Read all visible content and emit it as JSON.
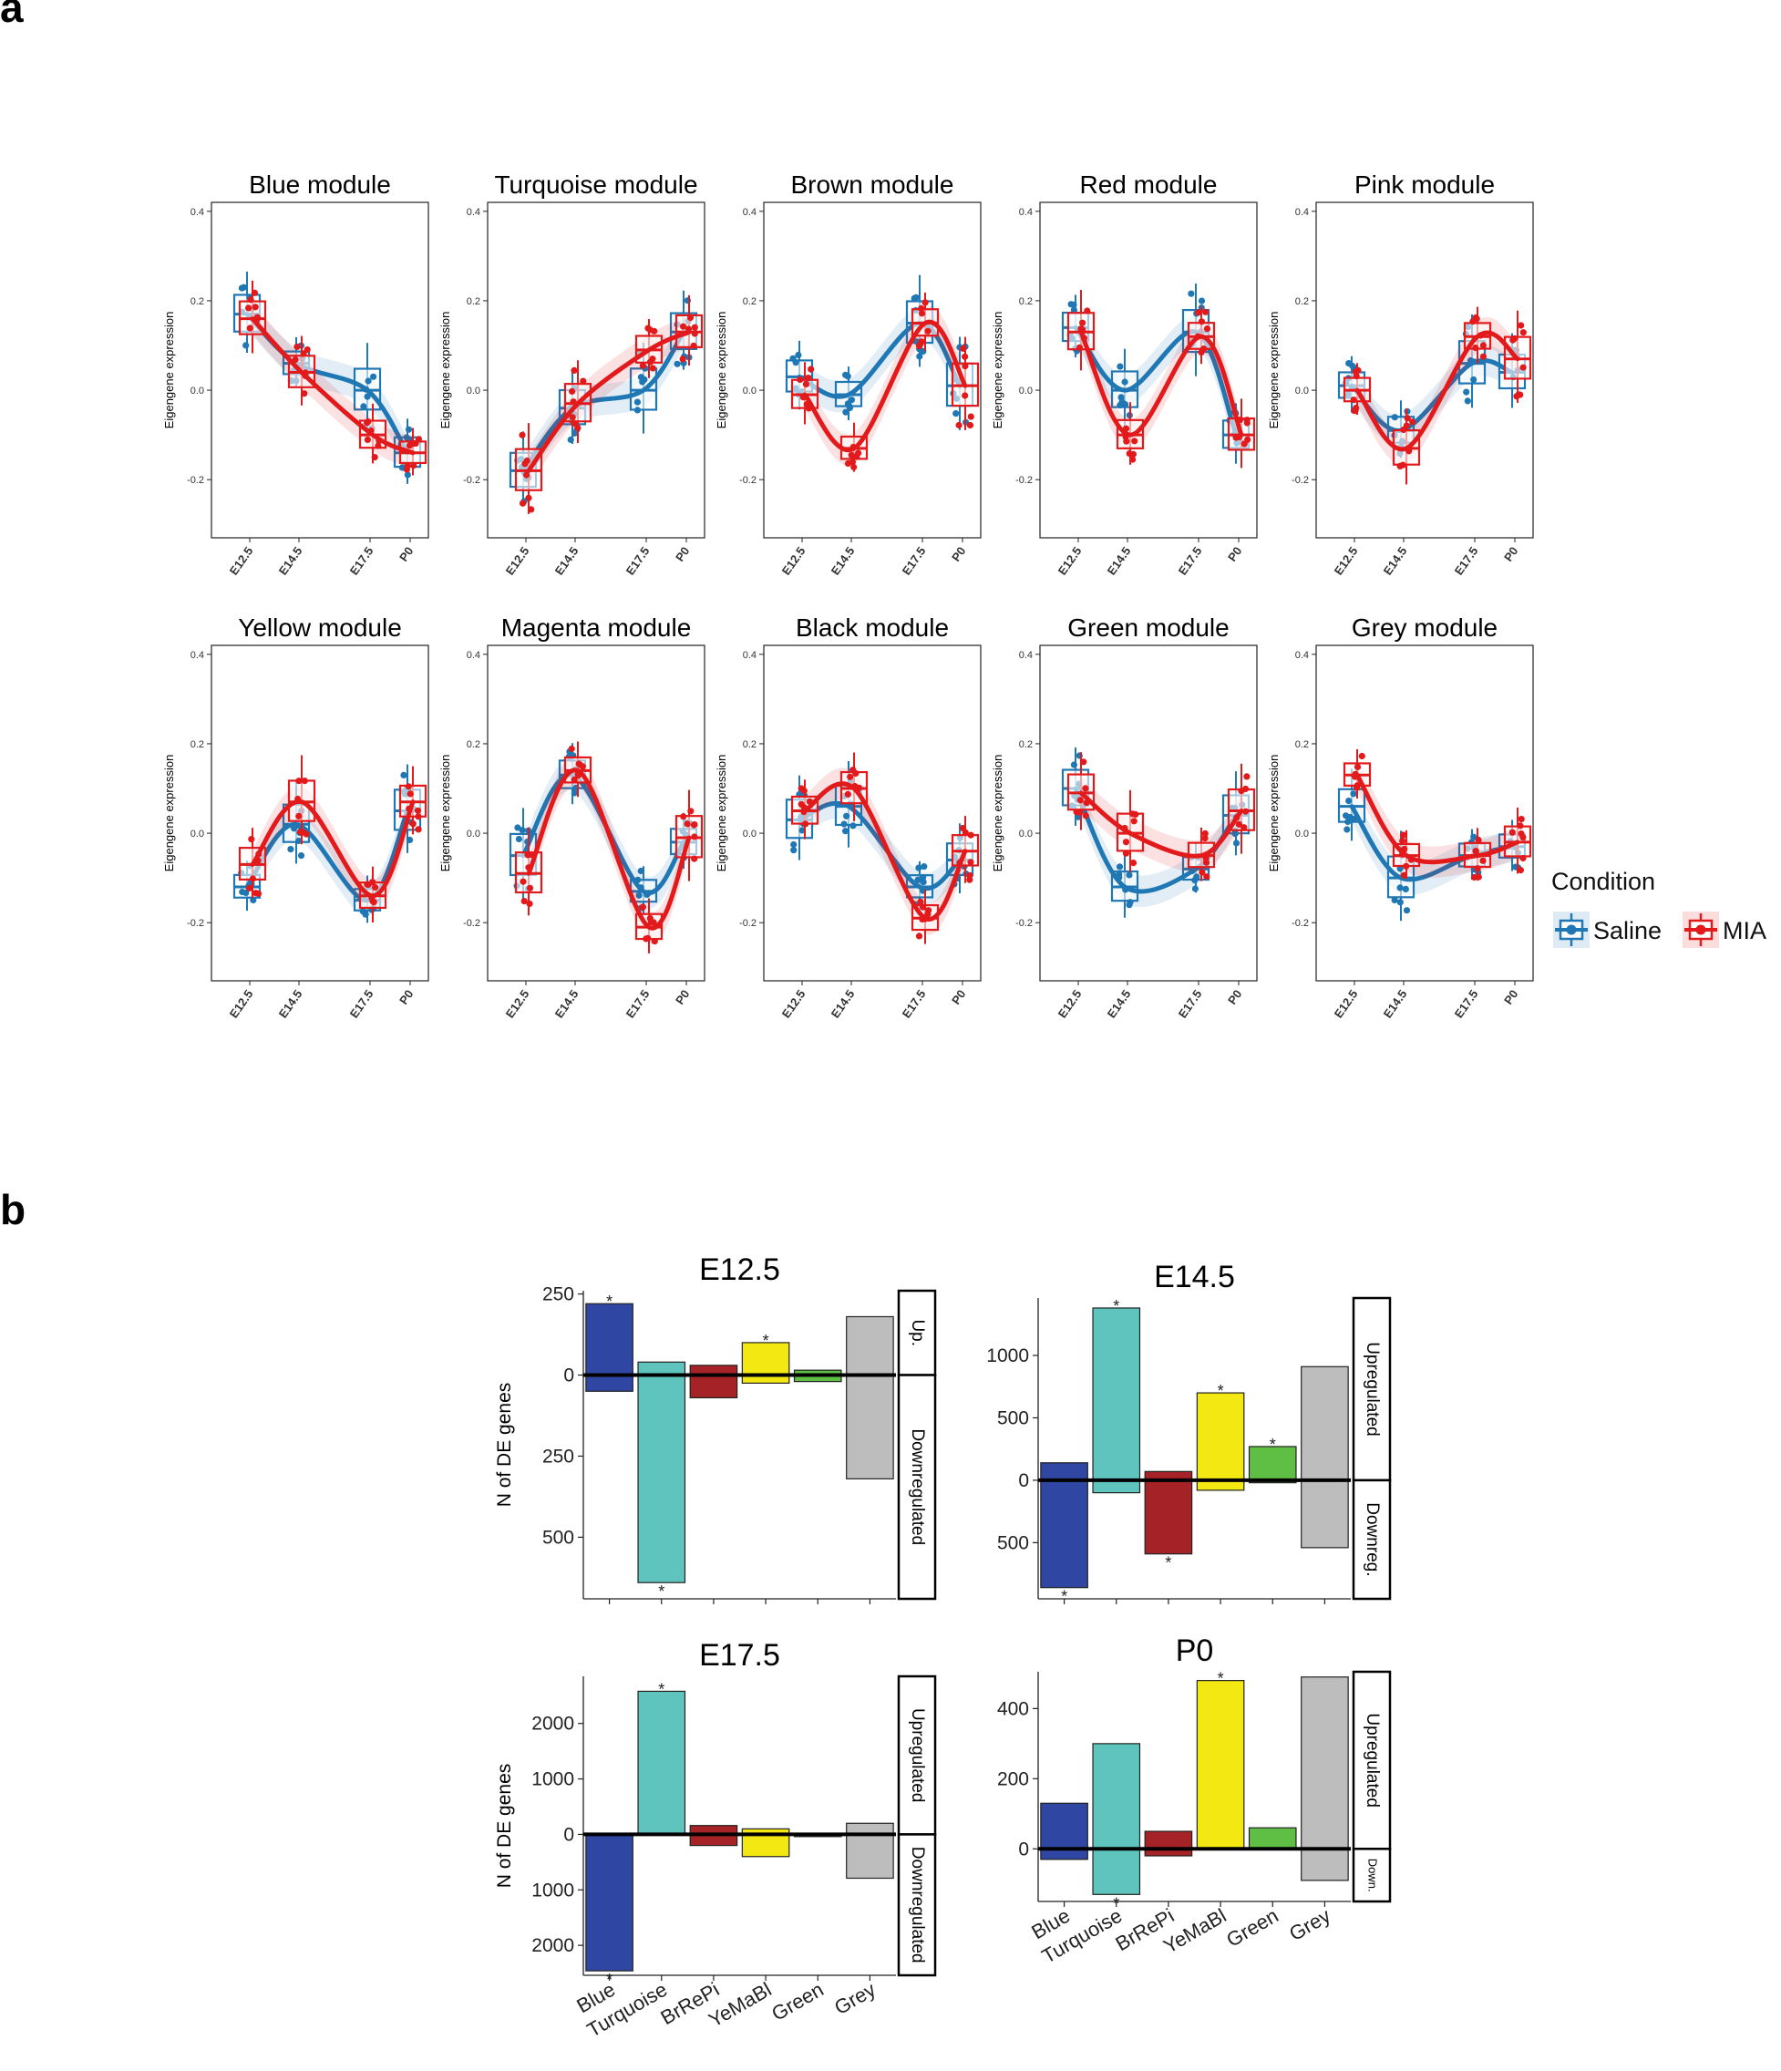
{
  "panels": {
    "a_label": "a",
    "b_label": "b"
  },
  "colors": {
    "saline": "#1f77b4",
    "mia": "#e31a1c",
    "blue": "#3046a3",
    "turquoise": "#5fc4bd",
    "brrepi": "#a52326",
    "yemabl": "#f4e813",
    "green": "#5fbf45",
    "grey": "#bdbdbd"
  },
  "chart_data": [
    {
      "type": "line",
      "panel": "a",
      "ylabel": "Eigengene expression",
      "x": [
        "E12.5",
        "E14.5",
        "E17.5",
        "P0"
      ],
      "ylim": [
        -0.33,
        0.42
      ],
      "yticks": [
        "-0.2",
        "0.0",
        "0.2",
        "0.4"
      ],
      "legend": {
        "title": "Condition",
        "placement": "right",
        "entries": [
          "Saline",
          "MIA"
        ]
      },
      "modules": [
        {
          "title": "Blue module",
          "saline": [
            0.17,
            0.06,
            0.0,
            -0.14
          ],
          "mia": [
            0.16,
            0.04,
            -0.1,
            -0.14
          ]
        },
        {
          "title": "Turquoise module",
          "saline": [
            -0.18,
            -0.04,
            0.0,
            0.13
          ],
          "mia": [
            -0.18,
            -0.03,
            0.09,
            0.13
          ]
        },
        {
          "title": "Brown module",
          "saline": [
            0.03,
            -0.01,
            0.15,
            0.01
          ],
          "mia": [
            -0.01,
            -0.13,
            0.15,
            0.01
          ]
        },
        {
          "title": "Red module",
          "saline": [
            0.14,
            0.0,
            0.13,
            -0.1
          ],
          "mia": [
            0.13,
            -0.1,
            0.12,
            -0.1
          ]
        },
        {
          "title": "Pink module",
          "saline": [
            0.01,
            -0.09,
            0.06,
            0.04
          ],
          "mia": [
            0.0,
            -0.13,
            0.12,
            0.07
          ]
        },
        {
          "title": "Yellow module",
          "saline": [
            -0.12,
            0.02,
            -0.15,
            0.05
          ],
          "mia": [
            -0.07,
            0.07,
            -0.14,
            0.07
          ]
        },
        {
          "title": "Magenta module",
          "saline": [
            -0.05,
            0.13,
            -0.13,
            -0.02
          ],
          "mia": [
            -0.09,
            0.14,
            -0.21,
            -0.01
          ]
        },
        {
          "title": "Black module",
          "saline": [
            0.03,
            0.06,
            -0.12,
            -0.06
          ],
          "mia": [
            0.05,
            0.1,
            -0.19,
            -0.04
          ]
        },
        {
          "title": "Green module",
          "saline": [
            0.1,
            -0.12,
            -0.08,
            0.04
          ],
          "mia": [
            0.09,
            0.0,
            -0.05,
            0.05
          ]
        },
        {
          "title": "Grey module",
          "saline": [
            0.06,
            -0.1,
            -0.05,
            -0.03
          ],
          "mia": [
            0.13,
            -0.05,
            -0.05,
            -0.02
          ]
        }
      ]
    },
    {
      "type": "bar",
      "panel": "b",
      "title": "E12.5",
      "ylabel": "N of DE genes",
      "categories": [
        "Blue",
        "Turquoise",
        "BrRePi",
        "YeMaBl",
        "Green",
        "Grey"
      ],
      "up": [
        220,
        40,
        30,
        100,
        15,
        180
      ],
      "down": [
        50,
        640,
        70,
        25,
        20,
        320
      ],
      "sig_up": [
        true,
        false,
        false,
        true,
        false,
        false
      ],
      "sig_down": [
        false,
        true,
        false,
        false,
        false,
        false
      ],
      "ylim": [
        -690,
        260
      ],
      "yticks": [
        {
          "v": 250,
          "label": "250"
        },
        {
          "v": 0,
          "label": "0"
        },
        {
          "v": -250,
          "label": "250"
        },
        {
          "v": -500,
          "label": "500"
        }
      ],
      "strip_up": "Up.",
      "strip_down": "Downregulated",
      "show_xlabels": false
    },
    {
      "type": "bar",
      "panel": "b",
      "title": "E14.5",
      "ylabel": "",
      "categories": [
        "Blue",
        "Turquoise",
        "BrRePi",
        "YeMaBl",
        "Green",
        "Grey"
      ],
      "up": [
        140,
        1380,
        70,
        700,
        270,
        910
      ],
      "down": [
        860,
        100,
        590,
        80,
        20,
        540
      ],
      "sig_up": [
        false,
        true,
        false,
        true,
        true,
        false
      ],
      "sig_down": [
        true,
        false,
        true,
        false,
        false,
        false
      ],
      "ylim": [
        -950,
        1460
      ],
      "yticks": [
        {
          "v": 1000,
          "label": "1000"
        },
        {
          "v": 500,
          "label": "500"
        },
        {
          "v": 0,
          "label": "0"
        },
        {
          "v": -500,
          "label": "500"
        }
      ],
      "strip_up": "Upregulated",
      "strip_down": "Downreg.",
      "show_xlabels": false
    },
    {
      "type": "bar",
      "panel": "b",
      "title": "E17.5",
      "ylabel": "N of DE genes",
      "categories": [
        "Blue",
        "Turquoise",
        "BrRePi",
        "YeMaBl",
        "Green",
        "Grey"
      ],
      "up": [
        0,
        2580,
        160,
        100,
        10,
        200
      ],
      "down": [
        2460,
        0,
        200,
        400,
        40,
        790
      ],
      "sig_up": [
        false,
        true,
        false,
        false,
        false,
        false
      ],
      "sig_down": [
        true,
        false,
        false,
        false,
        false,
        false
      ],
      "ylim": [
        -2540,
        2850
      ],
      "yticks": [
        {
          "v": 2000,
          "label": "2000"
        },
        {
          "v": 1000,
          "label": "1000"
        },
        {
          "v": 0,
          "label": "0"
        },
        {
          "v": -1000,
          "label": "1000"
        },
        {
          "v": -2000,
          "label": "2000"
        }
      ],
      "strip_up": "Upregulated",
      "strip_down": "Downregulated",
      "show_xlabels": true
    },
    {
      "type": "bar",
      "panel": "b",
      "title": "P0",
      "ylabel": "",
      "categories": [
        "Blue",
        "Turquoise",
        "BrRePi",
        "YeMaBl",
        "Green",
        "Grey"
      ],
      "up": [
        130,
        300,
        50,
        480,
        60,
        490
      ],
      "down": [
        30,
        130,
        20,
        0,
        0,
        90
      ],
      "sig_up": [
        false,
        false,
        false,
        true,
        false,
        false
      ],
      "sig_down": [
        false,
        true,
        false,
        false,
        false,
        false
      ],
      "ylim": [
        -150,
        505
      ],
      "yticks": [
        {
          "v": 400,
          "label": "400"
        },
        {
          "v": 200,
          "label": "200"
        },
        {
          "v": 0,
          "label": "0"
        }
      ],
      "strip_up": "Upregulated",
      "strip_down": "Down.",
      "show_xlabels": true
    }
  ]
}
